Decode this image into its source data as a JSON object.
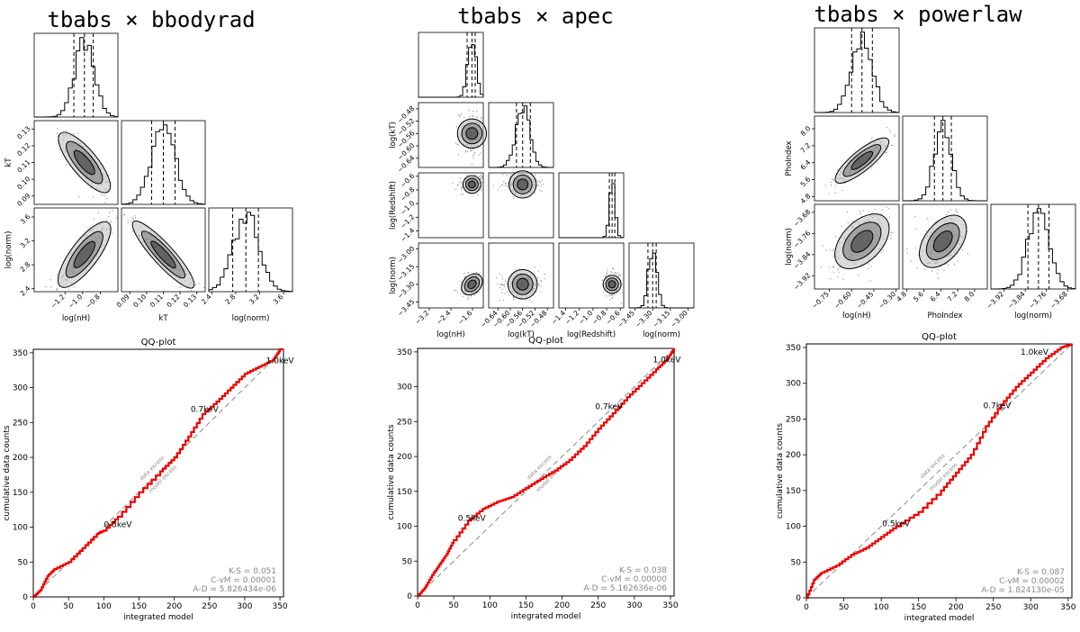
{
  "chart_data": [
    {
      "type": "corner",
      "title": "tbabs × bbodyrad",
      "params": [
        {
          "label": "log(nH)",
          "ticks": [
            "−1.2",
            "−1.0",
            "−0.8"
          ],
          "tick_values": [
            -1.2,
            -1.0,
            -0.8
          ],
          "range": [
            -1.55,
            -0.6
          ],
          "quantiles": [
            -1.1,
            -0.98,
            -0.88
          ]
        },
        {
          "label": "kT",
          "ticks": [
            "0.09",
            "0.10",
            "0.11",
            "0.12",
            "0.13"
          ],
          "tick_values": [
            0.09,
            0.1,
            0.11,
            0.12,
            0.13
          ],
          "range": [
            0.085,
            0.135
          ],
          "quantiles": [
            0.103,
            0.11,
            0.117
          ]
        },
        {
          "label": "log(norm)",
          "ticks": [
            "2.4",
            "2.8",
            "3.2",
            "3.6"
          ],
          "tick_values": [
            2.4,
            2.8,
            3.2,
            3.6
          ],
          "range": [
            2.35,
            3.75
          ],
          "quantiles": [
            2.75,
            2.97,
            3.18
          ]
        }
      ],
      "correlations": [
        [
          1,
          -0.85,
          0.85
        ],
        [
          -0.85,
          1,
          -0.97
        ],
        [
          0.85,
          -0.97,
          1
        ]
      ]
    },
    {
      "type": "corner",
      "title": "tbabs × apec",
      "params": [
        {
          "label": "log(nH)",
          "ticks": [
            "−3.2",
            "−2.4",
            "−1.6"
          ],
          "tick_values": [
            -3.2,
            -2.4,
            -1.6
          ],
          "range": [
            -3.6,
            -1.2
          ],
          "quantiles": [
            -1.8,
            -1.62,
            -1.5
          ]
        },
        {
          "label": "log(kT)",
          "ticks": [
            "−0.64",
            "−0.60",
            "−0.56",
            "−0.52",
            "−0.48"
          ],
          "tick_values": [
            -0.64,
            -0.6,
            -0.56,
            -0.52,
            -0.48
          ],
          "range": [
            -0.67,
            -0.46
          ],
          "quantiles": [
            -0.58,
            -0.56,
            -0.535
          ]
        },
        {
          "label": "log(Redshift)",
          "ticks": [
            "−1.4",
            "−1.2",
            "−1.0",
            "−0.8",
            "−0.6"
          ],
          "tick_values": [
            -1.4,
            -1.2,
            -1.0,
            -0.8,
            -0.6
          ],
          "range": [
            -1.5,
            -0.55
          ],
          "quantiles": [
            -0.76,
            -0.72,
            -0.68
          ]
        },
        {
          "label": "log(norm)",
          "ticks": [
            "−3.45",
            "−3.30",
            "−3.15",
            "−3.00"
          ],
          "tick_values": [
            -3.45,
            -3.3,
            -3.15,
            -3.0
          ],
          "range": [
            -3.5,
            -2.95
          ],
          "quantiles": [
            -3.34,
            -3.3,
            -3.27
          ]
        }
      ],
      "correlations": [
        [
          1,
          0,
          0,
          0.3
        ],
        [
          0,
          1,
          0,
          0
        ],
        [
          0,
          0,
          1,
          0
        ],
        [
          0.3,
          0,
          0,
          1
        ]
      ]
    },
    {
      "type": "corner",
      "title": "tbabs × powerlaw",
      "params": [
        {
          "label": "log(nH)",
          "ticks": [
            "−0.75",
            "−0.60",
            "−0.45",
            "−0.30"
          ],
          "tick_values": [
            -0.75,
            -0.6,
            -0.45,
            -0.3
          ],
          "range": [
            -0.85,
            -0.28
          ],
          "quantiles": [
            -0.6,
            -0.53,
            -0.46
          ]
        },
        {
          "label": "PhoIndex",
          "ticks": [
            "4.8",
            "5.6",
            "6.4",
            "7.2",
            "8.0"
          ],
          "tick_values": [
            4.8,
            5.6,
            6.4,
            7.2,
            8.0
          ],
          "range": [
            4.6,
            8.6
          ],
          "quantiles": [
            6.1,
            6.5,
            6.9
          ]
        },
        {
          "label": "log(norm)",
          "ticks": [
            "−3.92",
            "−3.84",
            "−3.76",
            "−3.68"
          ],
          "tick_values": [
            -3.92,
            -3.84,
            -3.76,
            -3.68
          ],
          "range": [
            -3.97,
            -3.65
          ],
          "quantiles": [
            -3.83,
            -3.79,
            -3.75
          ]
        }
      ],
      "correlations": [
        [
          1,
          0.9,
          0.5
        ],
        [
          0.9,
          1,
          0.5
        ],
        [
          0.5,
          0.5,
          1
        ]
      ]
    },
    {
      "type": "line",
      "title": "QQ-plot",
      "xlabel": "integrated model",
      "ylabel": "cumulative data counts",
      "xlim": [
        0,
        355
      ],
      "ylim": [
        0,
        355
      ],
      "xticks": [
        0,
        50,
        100,
        150,
        200,
        250,
        300,
        350
      ],
      "yticks": [
        0,
        50,
        100,
        150,
        200,
        250,
        300,
        350
      ],
      "reference_labels": [
        "data excess",
        "model excess"
      ],
      "x": [
        0,
        10,
        20,
        30,
        50,
        70,
        90,
        100,
        120,
        150,
        180,
        200,
        220,
        240,
        260,
        280,
        300,
        320,
        340,
        350,
        355
      ],
      "y": [
        0,
        10,
        30,
        40,
        50,
        70,
        90,
        95,
        115,
        150,
        180,
        200,
        230,
        262,
        280,
        300,
        320,
        330,
        340,
        355,
        355
      ],
      "annotations": [
        {
          "text": "0.5keV",
          "x": 120,
          "y": 100
        },
        {
          "text": "0.7keV",
          "x": 243,
          "y": 265
        },
        {
          "text": "1.0keV",
          "x": 350,
          "y": 335
        }
      ],
      "stats": [
        "K-S = 0.051",
        "C-vM = 0.00001",
        "A-D = 5.826434e-06"
      ]
    },
    {
      "type": "line",
      "title": "QQ-plot",
      "xlabel": "integrated model",
      "ylabel": "cumulative data counts",
      "xlim": [
        0,
        355
      ],
      "ylim": [
        0,
        355
      ],
      "xticks": [
        0,
        50,
        100,
        150,
        200,
        250,
        300,
        350
      ],
      "yticks": [
        0,
        50,
        100,
        150,
        200,
        250,
        300,
        350
      ],
      "reference_labels": [
        "data excess",
        "model excess"
      ],
      "x": [
        0,
        10,
        20,
        30,
        40,
        50,
        70,
        90,
        110,
        130,
        150,
        170,
        190,
        210,
        230,
        250,
        270,
        290,
        310,
        330,
        345,
        355
      ],
      "y": [
        0,
        12,
        30,
        45,
        60,
        80,
        108,
        125,
        135,
        142,
        155,
        168,
        180,
        195,
        215,
        240,
        262,
        285,
        305,
        325,
        340,
        355
      ],
      "annotations": [
        {
          "text": "0.5keV",
          "x": 75,
          "y": 108
        },
        {
          "text": "0.7keV",
          "x": 265,
          "y": 268
        },
        {
          "text": "1.0keV",
          "x": 345,
          "y": 335
        }
      ],
      "stats": [
        "K-S = 0.038",
        "C-vM = 0.00000",
        "A-D = 5.162636e-06"
      ]
    },
    {
      "type": "line",
      "title": "QQ-plot",
      "xlabel": "integrated model",
      "ylabel": "cumulative data counts",
      "xlim": [
        0,
        355
      ],
      "ylim": [
        0,
        355
      ],
      "xticks": [
        0,
        50,
        100,
        150,
        200,
        250,
        300,
        350
      ],
      "yticks": [
        0,
        50,
        100,
        150,
        200,
        250,
        300,
        350
      ],
      "reference_labels": [
        "data excess",
        "model excess"
      ],
      "x": [
        0,
        10,
        20,
        40,
        60,
        80,
        100,
        120,
        150,
        180,
        200,
        220,
        240,
        260,
        280,
        300,
        320,
        340,
        355
      ],
      "y": [
        0,
        25,
        35,
        45,
        60,
        70,
        85,
        100,
        120,
        150,
        175,
        200,
        240,
        270,
        295,
        315,
        335,
        350,
        355
      ],
      "annotations": [
        {
          "text": "0.5keV",
          "x": 120,
          "y": 100
        },
        {
          "text": "0.7keV",
          "x": 255,
          "y": 265
        },
        {
          "text": "1.0keV",
          "x": 305,
          "y": 340
        }
      ],
      "stats": [
        "K-S = 0.087",
        "C-vM = 0.00002",
        "A-D = 1.824130e-05"
      ]
    }
  ],
  "colors": {
    "qq_line": "#ee0000",
    "reference_line": "#888888",
    "ink": "#000000",
    "stats_text": "#888888",
    "contour_fill_inner": "#333333",
    "contour_fill_mid": "#777777",
    "contour_fill_outer": "#bbbbbb"
  }
}
